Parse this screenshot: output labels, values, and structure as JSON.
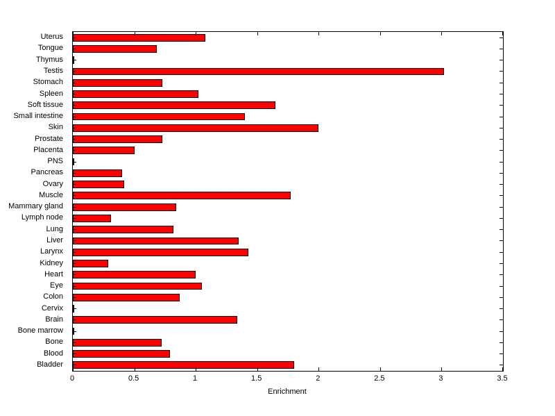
{
  "chart_data": {
    "type": "bar",
    "orientation": "horizontal",
    "title": "",
    "xlabel": "Enrichment",
    "ylabel": "",
    "xlim": [
      0,
      3.5
    ],
    "xticks": [
      0,
      0.5,
      1,
      1.5,
      2,
      2.5,
      3,
      3.5
    ],
    "xtick_labels": [
      "0",
      "0.5",
      "1",
      "1.5",
      "2",
      "2.5",
      "3",
      "3.5"
    ],
    "grid": false,
    "legend": null,
    "bar_color": "#FF0000",
    "bar_edge_color": "#000000",
    "categories": [
      "Uterus",
      "Tongue",
      "Thymus",
      "Testis",
      "Stomach",
      "Spleen",
      "Soft tissue",
      "Small intestine",
      "Skin",
      "Prostate",
      "Placenta",
      "PNS",
      "Pancreas",
      "Ovary",
      "Muscle",
      "Mammary gland",
      "Lymph node",
      "Lung",
      "Liver",
      "Larynx",
      "Kidney",
      "Heart",
      "Eye",
      "Colon",
      "Cervix",
      "Brain",
      "Bone marrow",
      "Bone",
      "Blood",
      "Bladder"
    ],
    "values": [
      1.08,
      0.68,
      0.01,
      3.02,
      0.73,
      1.02,
      1.65,
      1.4,
      2.0,
      0.73,
      0.5,
      0.01,
      0.4,
      0.42,
      1.77,
      0.84,
      0.31,
      0.82,
      1.35,
      1.43,
      0.29,
      1.0,
      1.05,
      0.87,
      0.01,
      1.34,
      0.01,
      0.72,
      0.79,
      1.8
    ]
  }
}
